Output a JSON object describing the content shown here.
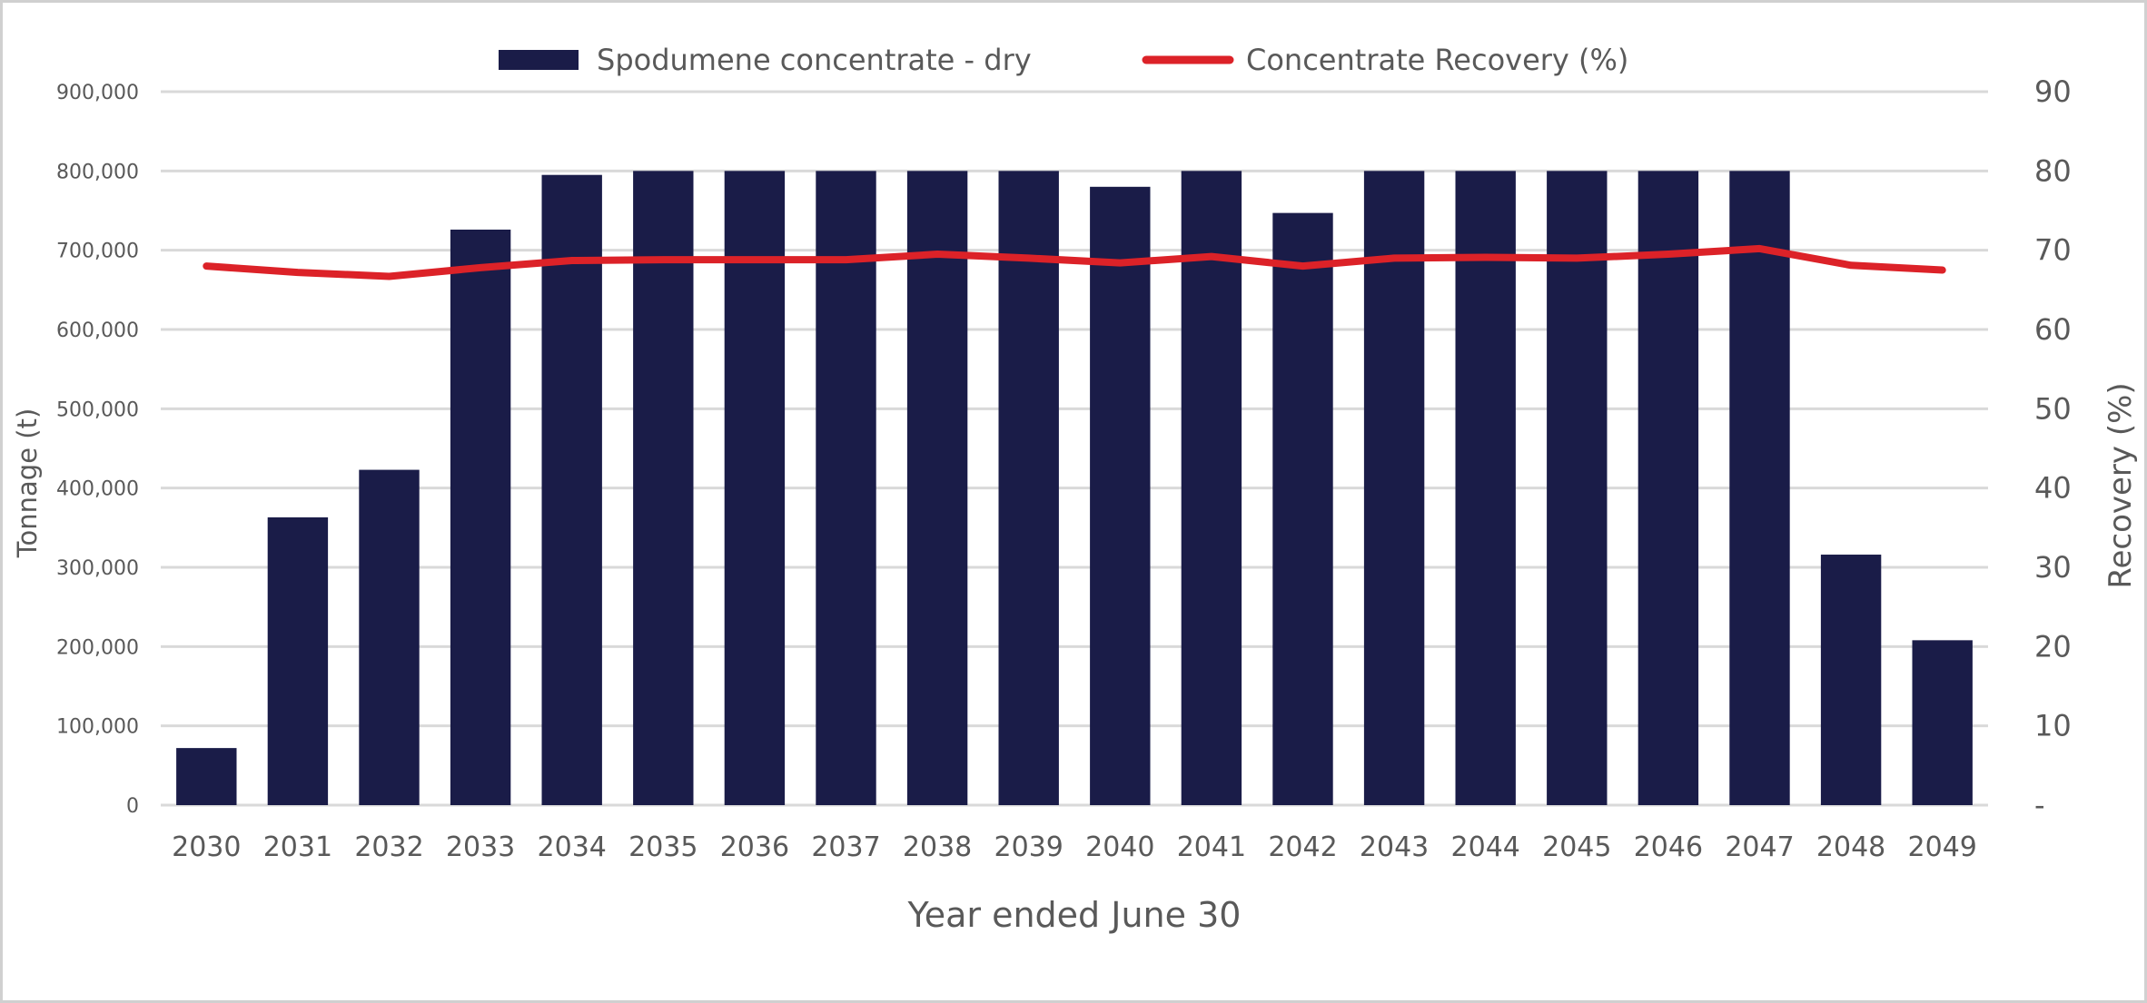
{
  "chart_data": {
    "type": "bar+line",
    "categories": [
      "2030",
      "2031",
      "2032",
      "2033",
      "2034",
      "2035",
      "2036",
      "2037",
      "2038",
      "2039",
      "2040",
      "2041",
      "2042",
      "2043",
      "2044",
      "2045",
      "2046",
      "2047",
      "2048",
      "2049"
    ],
    "series": [
      {
        "name": "Spodumene concentrate - dry",
        "type": "bar",
        "axis": "left",
        "color": "#1a1c48",
        "values": [
          72000,
          363000,
          423000,
          726000,
          795000,
          800000,
          800000,
          800000,
          800000,
          800000,
          780000,
          800000,
          747000,
          800000,
          800000,
          800000,
          800000,
          800000,
          316000,
          208000
        ]
      },
      {
        "name": "Concentrate Recovery (%)",
        "type": "line",
        "axis": "right",
        "color": "#dc2228",
        "values": [
          68.0,
          67.2,
          66.7,
          67.8,
          68.7,
          68.8,
          68.8,
          68.8,
          69.5,
          69.0,
          68.4,
          69.2,
          68.0,
          69.0,
          69.1,
          69.0,
          69.5,
          70.2,
          68.1,
          67.5
        ]
      }
    ],
    "xlabel": "Year ended June 30",
    "ylabel": "Tonnage (t)",
    "y2label": "Recovery (%)",
    "ylim": [
      0,
      900000
    ],
    "y2lim": [
      0,
      90
    ],
    "yticks": [
      "0",
      "100,000",
      "200,000",
      "300,000",
      "400,000",
      "500,000",
      "600,000",
      "700,000",
      "800,000",
      "900,000"
    ],
    "y2ticks": [
      "-",
      "10",
      "20",
      "30",
      "40",
      "50",
      "60",
      "70",
      "80",
      "90"
    ],
    "grid": true,
    "legend": "top-center"
  }
}
